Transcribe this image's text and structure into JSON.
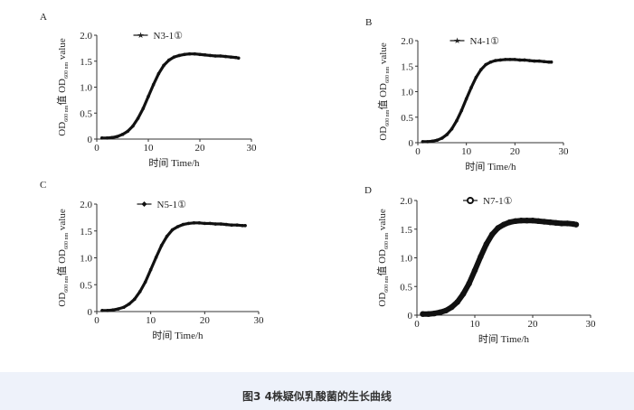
{
  "caption": "图3 4株疑似乳酸菌的生长曲线",
  "chart_data": [
    {
      "type": "line",
      "panel": "A",
      "series": [
        {
          "name": "N3-1①",
          "marker": "star",
          "x": [
            1,
            2,
            3,
            4,
            5,
            6,
            7,
            8,
            9,
            10,
            11,
            12,
            13,
            14,
            15,
            16,
            17,
            18,
            19,
            20,
            21,
            22,
            23,
            24,
            25,
            26,
            27,
            27.5
          ],
          "y": [
            0.02,
            0.02,
            0.03,
            0.05,
            0.09,
            0.15,
            0.25,
            0.4,
            0.59,
            0.82,
            1.05,
            1.26,
            1.42,
            1.52,
            1.58,
            1.61,
            1.63,
            1.64,
            1.64,
            1.63,
            1.62,
            1.61,
            1.6,
            1.6,
            1.59,
            1.58,
            1.57,
            1.56
          ]
        }
      ],
      "xlabel": "时间 Time/h",
      "ylabel": "OD600 nm值 OD600 nm value",
      "xlim": [
        0,
        30
      ],
      "ylim": [
        0,
        2.0
      ],
      "xticks": [
        "0",
        "10",
        "20",
        "30"
      ],
      "yticks": [
        "0",
        "0.5",
        "1.0",
        "1.5",
        "2.0"
      ],
      "legend": "top-center",
      "color": "#111111"
    },
    {
      "type": "line",
      "panel": "B",
      "series": [
        {
          "name": "N4-1①",
          "marker": "star",
          "x": [
            1,
            2,
            3,
            4,
            5,
            6,
            7,
            8,
            9,
            10,
            11,
            12,
            13,
            14,
            15,
            16,
            17,
            18,
            19,
            20,
            21,
            22,
            23,
            24,
            25,
            26,
            27,
            27.5
          ],
          "y": [
            0.02,
            0.02,
            0.03,
            0.05,
            0.09,
            0.16,
            0.27,
            0.43,
            0.63,
            0.86,
            1.08,
            1.28,
            1.43,
            1.53,
            1.58,
            1.61,
            1.62,
            1.63,
            1.63,
            1.63,
            1.62,
            1.62,
            1.61,
            1.6,
            1.6,
            1.59,
            1.58,
            1.58
          ]
        }
      ],
      "xlabel": "时间 Time/h",
      "ylabel": "OD600 nm值 OD600 nm value",
      "xlim": [
        0,
        30
      ],
      "ylim": [
        0,
        2.0
      ],
      "xticks": [
        "0",
        "10",
        "20",
        "30"
      ],
      "yticks": [
        "0",
        "0.5",
        "1.0",
        "1.5",
        "2.0"
      ],
      "legend": "top-center",
      "color": "#111111"
    },
    {
      "type": "line",
      "panel": "C",
      "series": [
        {
          "name": "N5-1①",
          "marker": "diamond",
          "x": [
            1,
            2,
            3,
            4,
            5,
            6,
            7,
            8,
            9,
            10,
            11,
            12,
            13,
            14,
            15,
            16,
            17,
            18,
            19,
            20,
            21,
            22,
            23,
            24,
            25,
            26,
            27,
            27.5
          ],
          "y": [
            0.02,
            0.02,
            0.03,
            0.05,
            0.08,
            0.14,
            0.23,
            0.37,
            0.55,
            0.78,
            1.01,
            1.23,
            1.4,
            1.52,
            1.58,
            1.62,
            1.64,
            1.65,
            1.65,
            1.64,
            1.64,
            1.63,
            1.63,
            1.62,
            1.61,
            1.61,
            1.6,
            1.6
          ]
        }
      ],
      "xlabel": "时间 Time/h",
      "ylabel": "OD600 nm值 OD600 nm value",
      "xlim": [
        0,
        30
      ],
      "ylim": [
        0,
        2.0
      ],
      "xticks": [
        "0",
        "10",
        "20",
        "30"
      ],
      "yticks": [
        "0",
        "0.5",
        "1.0",
        "1.5",
        "2.0"
      ],
      "legend": "top-center",
      "color": "#111111"
    },
    {
      "type": "line",
      "panel": "D",
      "series": [
        {
          "name": "N7-1①",
          "marker": "circle",
          "x": [
            1,
            2,
            3,
            4,
            5,
            6,
            7,
            8,
            9,
            10,
            11,
            12,
            13,
            14,
            15,
            16,
            17,
            18,
            19,
            20,
            21,
            22,
            23,
            24,
            25,
            26,
            27,
            27.5
          ],
          "y": [
            0.02,
            0.02,
            0.03,
            0.05,
            0.08,
            0.14,
            0.23,
            0.37,
            0.55,
            0.78,
            1.02,
            1.24,
            1.41,
            1.52,
            1.58,
            1.62,
            1.64,
            1.65,
            1.65,
            1.65,
            1.64,
            1.63,
            1.62,
            1.61,
            1.6,
            1.6,
            1.59,
            1.58
          ]
        }
      ],
      "xlabel": "时间 Time/h",
      "ylabel": "OD600 nm值 OD600 nm value",
      "xlim": [
        0,
        30
      ],
      "ylim": [
        0,
        2.0
      ],
      "xticks": [
        "0",
        "10",
        "20",
        "30"
      ],
      "yticks": [
        "0",
        "0.5",
        "1.0",
        "1.5",
        "2.0"
      ],
      "legend": "top-center",
      "color": "#111111"
    }
  ]
}
